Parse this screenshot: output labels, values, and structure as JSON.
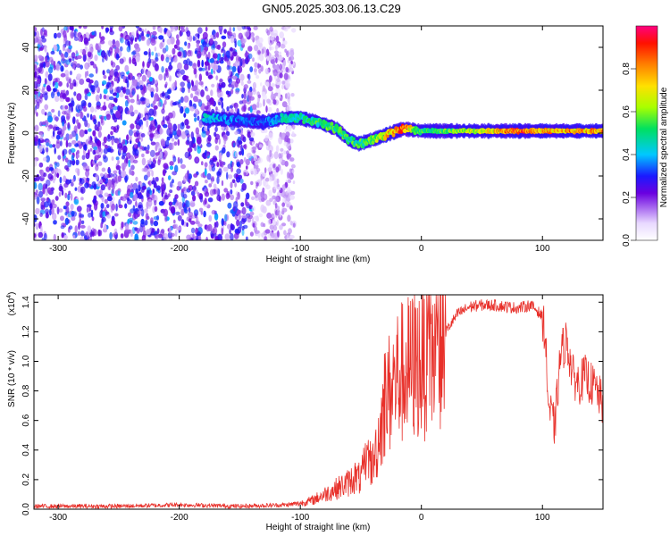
{
  "title": "GN05.2025.303.06.13.C29",
  "chart_data": [
    {
      "type": "heatmap",
      "xlabel": "Height of straight line (km)",
      "ylabel": "Frequency (Hz)",
      "xlim": [
        -320,
        150
      ],
      "ylim": [
        -50,
        50
      ],
      "xticks": [
        -300,
        -200,
        -100,
        0,
        100
      ],
      "xtick_labels": [
        "-300",
        "-200",
        "-100",
        "0",
        "100"
      ],
      "yticks": [
        -40,
        -20,
        0,
        20,
        40
      ],
      "ytick_labels": [
        "-40",
        "-20",
        "0",
        "20",
        "40"
      ],
      "colorbar": {
        "label": "Normalized spectral amplitude",
        "range": [
          0,
          1
        ],
        "ticks": [
          0.0,
          0.2,
          0.4,
          0.6,
          0.8
        ],
        "tick_labels": [
          "0.0",
          "0.2",
          "0.4",
          "0.6",
          "0.8"
        ]
      },
      "noise_region_x": [
        -320,
        -105
      ],
      "signal_track": [
        {
          "x": -180,
          "f": 7,
          "amp": 0.45
        },
        {
          "x": -150,
          "f": 6,
          "amp": 0.35
        },
        {
          "x": -130,
          "f": 5,
          "amp": 0.35
        },
        {
          "x": -115,
          "f": 7,
          "amp": 0.45
        },
        {
          "x": -100,
          "f": 7,
          "amp": 0.5
        },
        {
          "x": -85,
          "f": 5,
          "amp": 0.55
        },
        {
          "x": -70,
          "f": 2,
          "amp": 0.55
        },
        {
          "x": -60,
          "f": -3,
          "amp": 0.55
        },
        {
          "x": -52,
          "f": -5,
          "amp": 0.55
        },
        {
          "x": -40,
          "f": -3,
          "amp": 0.6
        },
        {
          "x": -25,
          "f": 0,
          "amp": 0.8
        },
        {
          "x": -15,
          "f": 2,
          "amp": 0.9
        },
        {
          "x": 0,
          "f": 1,
          "amp": 0.55
        },
        {
          "x": 20,
          "f": 1,
          "amp": 0.6
        },
        {
          "x": 50,
          "f": 1,
          "amp": 0.7
        },
        {
          "x": 80,
          "f": 1,
          "amp": 0.9
        },
        {
          "x": 100,
          "f": 1,
          "amp": 0.8
        },
        {
          "x": 120,
          "f": 1,
          "amp": 0.85
        },
        {
          "x": 150,
          "f": 1,
          "amp": 0.8
        }
      ]
    },
    {
      "type": "line",
      "xlabel": "Height of straight line (km)",
      "ylabel": "SNR (10 * v/v)",
      "y_multiplier_label": "(x10",
      "y_multiplier_exp": "4",
      "y_multiplier_close": ")",
      "xlim": [
        -320,
        150
      ],
      "ylim": [
        0,
        1.45
      ],
      "xticks": [
        -300,
        -200,
        -100,
        0,
        100
      ],
      "xtick_labels": [
        "-300",
        "-200",
        "-100",
        "0",
        "100"
      ],
      "yticks": [
        0.0,
        0.2,
        0.4,
        0.6,
        0.8,
        1.0,
        1.2,
        1.4
      ],
      "ytick_labels": [
        "0.0",
        "0.2",
        "0.4",
        "0.6",
        "0.8",
        "1.0",
        "1.2",
        "1.4"
      ],
      "color": "#e8302a",
      "series": [
        {
          "name": "SNR",
          "x": [
            -320,
            -250,
            -200,
            -150,
            -110,
            -100,
            -90,
            -80,
            -70,
            -60,
            -55,
            -50,
            -45,
            -40,
            -35,
            -30,
            -25,
            -20,
            -10,
            0,
            10,
            20,
            30,
            40,
            50,
            60,
            70,
            80,
            90,
            95,
            100,
            102,
            105,
            110,
            115,
            120,
            125,
            130,
            135,
            140,
            145,
            150
          ],
          "y": [
            0.02,
            0.02,
            0.03,
            0.02,
            0.03,
            0.04,
            0.06,
            0.1,
            0.14,
            0.18,
            0.22,
            0.2,
            0.35,
            0.3,
            0.5,
            0.75,
            0.8,
            0.9,
            0.95,
            1.0,
            1.05,
            1.2,
            1.32,
            1.37,
            1.38,
            1.38,
            1.37,
            1.36,
            1.38,
            1.35,
            1.3,
            1.2,
            0.7,
            0.55,
            1.05,
            1.15,
            0.9,
            0.85,
            0.9,
            0.85,
            0.8,
            0.7
          ]
        }
      ]
    }
  ]
}
